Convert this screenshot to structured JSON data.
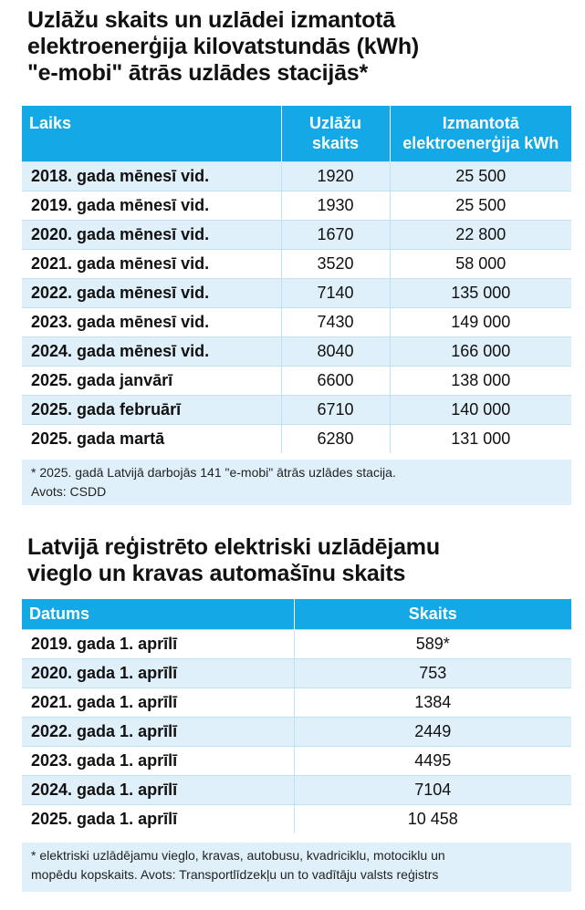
{
  "section1": {
    "title_lines": [
      "Uzlāžu skaits un uzlādei izmantotā",
      "elektroenerģija kilovatstundās (kWh)",
      "\"e-mobi\" ātrās uzlādes stacijās*"
    ],
    "headers": {
      "period": "Laiks",
      "count_lines": [
        "Uzlāžu",
        "skaits"
      ],
      "energy_lines": [
        "Izmantotā",
        "elektroenerģija kWh"
      ]
    },
    "rows": [
      {
        "period": "2018. gada mēnesī vid.",
        "count": "1920",
        "energy": "25 500"
      },
      {
        "period": "2019. gada mēnesī vid.",
        "count": "1930",
        "energy": "25 500"
      },
      {
        "period": "2020. gada mēnesī vid.",
        "count": "1670",
        "energy": "22 800"
      },
      {
        "period": "2021. gada mēnesī vid.",
        "count": "3520",
        "energy": "58 000"
      },
      {
        "period": "2022. gada mēnesī vid.",
        "count": "7140",
        "energy": "135 000"
      },
      {
        "period": "2023. gada mēnesī vid.",
        "count": "7430",
        "energy": "149 000"
      },
      {
        "period": "2024. gada mēnesī vid.",
        "count": "8040",
        "energy": "166 000"
      },
      {
        "period": "2025. gada janvārī",
        "count": "6600",
        "energy": "138 000"
      },
      {
        "period": "2025. gada februārī",
        "count": "6710",
        "energy": "140 000"
      },
      {
        "period": "2025. gada martā",
        "count": "6280",
        "energy": "131 000"
      }
    ],
    "footnote_lines": [
      "* 2025. gadā Latvijā darbojās 141 \"e-mobi\" ātrās uzlādes stacija.",
      "Avots: CSDD"
    ]
  },
  "section2": {
    "title_lines": [
      "Latvijā reģistrēto elektriski uzlādējamu",
      "vieglo un kravas automašīnu skaits"
    ],
    "headers": {
      "date": "Datums",
      "count": "Skaits"
    },
    "rows": [
      {
        "date": "2019. gada 1. aprīlī",
        "count": "589*"
      },
      {
        "date": "2020. gada 1. aprīlī",
        "count": "753"
      },
      {
        "date": "2021. gada 1. aprīlī",
        "count": "1384"
      },
      {
        "date": "2022. gada 1. aprīlī",
        "count": "2449"
      },
      {
        "date": "2023. gada 1. aprīlī",
        "count": "4495"
      },
      {
        "date": "2024. gada 1. aprīlī",
        "count": "7104"
      },
      {
        "date": "2025. gada 1. aprīlī",
        "count": "10 458"
      }
    ],
    "footnote_lines": [
      "* elektriski uzlādējamu vieglo, kravas, autobusu, kvadriciklu, motociklu un",
      "mopēdu kopskaits. Avots: Transportlīdzekļu un to vadītāju valsts reģistrs"
    ]
  },
  "colors": {
    "header_bg": "#14a8e6",
    "stripe_bg": "#dff0fa",
    "text": "#111111"
  }
}
